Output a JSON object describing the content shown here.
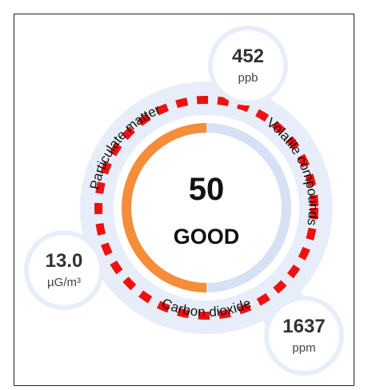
{
  "gauge": {
    "score": 50,
    "status": "GOOD"
  },
  "metrics": [
    {
      "label": "Particulate matter",
      "value": "13.0",
      "unit": "µG/m³"
    },
    {
      "label": "Volatile compounds",
      "value": "452",
      "unit": "ppb"
    },
    {
      "label": "Carbon dioxide",
      "value": "1637",
      "unit": "ppm"
    }
  ]
}
